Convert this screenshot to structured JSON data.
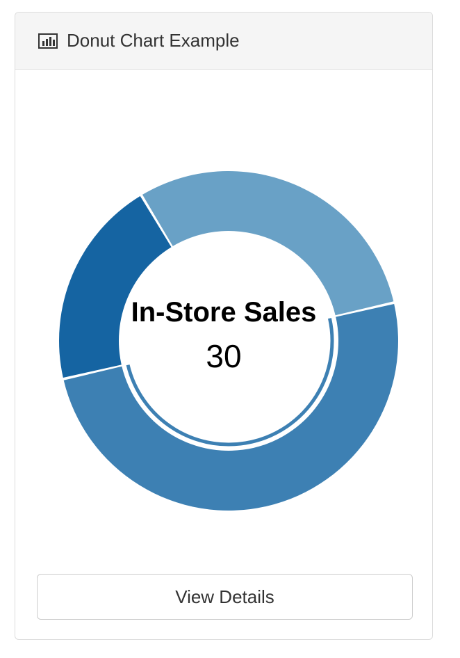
{
  "panel": {
    "title": "Donut Chart Example",
    "title_icon": "bar-chart-icon"
  },
  "chart_data": {
    "type": "pie",
    "variant": "donut",
    "center_label": "In-Store Sales",
    "center_value": "30",
    "highlighted_slice": 0,
    "slices": [
      {
        "value": 30,
        "color": "#3d80b3"
      },
      {
        "value": 12,
        "color": "#1564a2"
      },
      {
        "value": 18,
        "color": "#69a1c6"
      }
    ],
    "start_angle_deg": 77
  },
  "footer": {
    "button_label": "View Details"
  }
}
